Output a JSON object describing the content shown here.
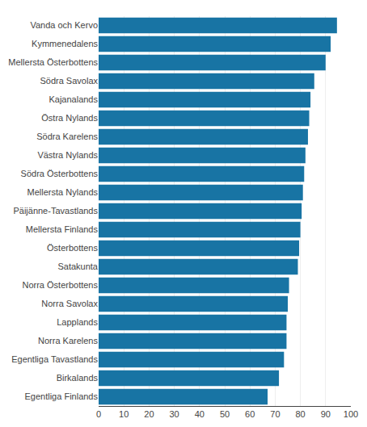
{
  "chart_data": {
    "type": "bar",
    "orientation": "horizontal",
    "categories": [
      "Egentliga Finlands",
      "Birkalands",
      "Egentliga Tavastlands",
      "Norra Karelens",
      "Lapplands",
      "Norra Savolax",
      "Norra Österbottens",
      "Satakunta",
      "Österbottens",
      "Mellersta Finlands",
      "Päijänne-Tavastlands",
      "Mellersta Nylands",
      "Södra Österbottens",
      "Västra Nylands",
      "Södra Karelens",
      "Östra Nylands",
      "Kajanalands",
      "Södra Savolax",
      "Mellersta Österbottens",
      "Kymmenedalens",
      "Vanda och Kervo"
    ],
    "values": [
      67.0,
      71.5,
      73.5,
      74.5,
      74.5,
      75.0,
      75.5,
      79.0,
      79.5,
      80.0,
      80.5,
      81.0,
      81.5,
      82.0,
      83.0,
      83.5,
      84.0,
      85.5,
      90.0,
      92.0,
      94.5
    ],
    "color": "#1874a4",
    "xlim": [
      0,
      100
    ],
    "xticks": [
      0,
      10,
      20,
      30,
      40,
      50,
      60,
      70,
      80,
      90,
      100
    ],
    "grid": true
  }
}
